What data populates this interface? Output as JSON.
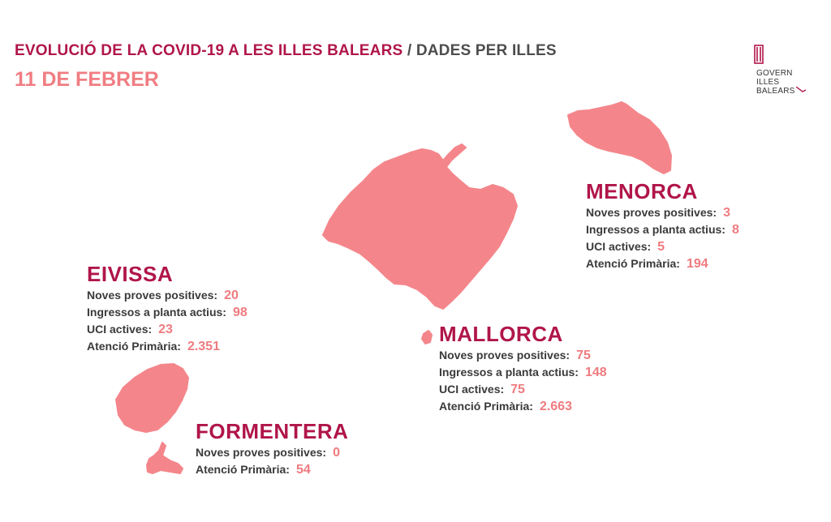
{
  "header": {
    "title_main": "EVOLUCIÓ DE LA COVID-19 A LES ILLES BALEARS",
    "title_separator": " / ",
    "title_sub": "DADES PER ILLES",
    "date": "11 DE FEBRER"
  },
  "logo": {
    "line1": "GOVERN",
    "line2": "ILLES",
    "line3": "BALEARS"
  },
  "colors": {
    "accent": "#b0154a",
    "highlight": "#ef7b7f",
    "island_fill": "#f4868b",
    "text": "#3a3a3a"
  },
  "islands": {
    "menorca": {
      "name": "MENORCA",
      "stats": [
        {
          "label": "Noves proves positives:",
          "value": "3"
        },
        {
          "label": "Ingressos a planta actius:",
          "value": "8"
        },
        {
          "label": "UCI actives:",
          "value": "5"
        },
        {
          "label": "Atenció Primària:",
          "value": "194"
        }
      ]
    },
    "eivissa": {
      "name": "EIVISSA",
      "stats": [
        {
          "label": "Noves proves positives:",
          "value": "20"
        },
        {
          "label": "Ingressos a planta actius:",
          "value": "98"
        },
        {
          "label": "UCI actives:",
          "value": "23"
        },
        {
          "label": "Atenció Primària:",
          "value": "2.351"
        }
      ]
    },
    "mallorca": {
      "name": "MALLORCA",
      "stats": [
        {
          "label": "Noves proves positives:",
          "value": "75"
        },
        {
          "label": "Ingressos a planta actius:",
          "value": "148"
        },
        {
          "label": "UCI actives:",
          "value": "75"
        },
        {
          "label": "Atenció Primària:",
          "value": "2.663"
        }
      ]
    },
    "formentera": {
      "name": "FORMENTERA",
      "stats": [
        {
          "label": "Noves proves positives:",
          "value": "0"
        },
        {
          "label": "Atenció Primària:",
          "value": "54"
        }
      ]
    }
  }
}
